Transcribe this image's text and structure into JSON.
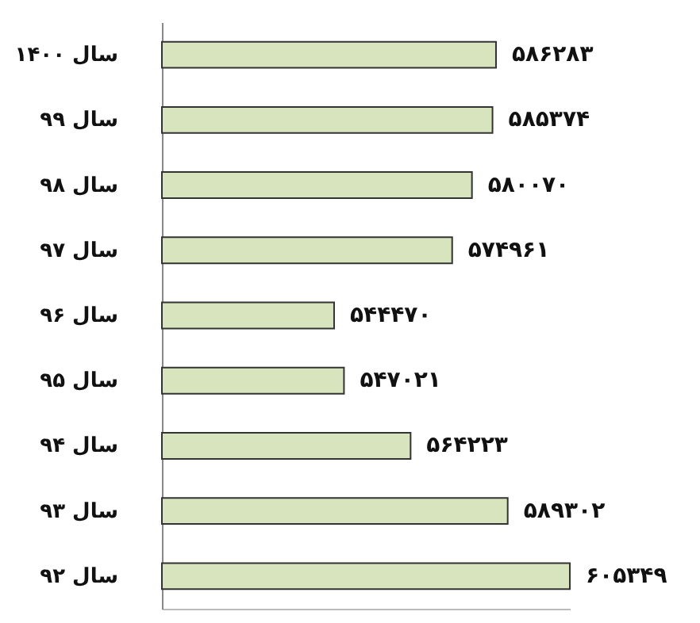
{
  "chart_data": {
    "type": "bar",
    "orientation": "horizontal",
    "categories": [
      "سال ۱۴۰۰",
      "سال ۹۹",
      "سال ۹۸",
      "سال ۹۷",
      "سال ۹۶",
      "سال ۹۵",
      "سال ۹۴",
      "سال ۹۳",
      "سال ۹۲"
    ],
    "values": [
      586283,
      585374,
      580070,
      574961,
      544470,
      547021,
      564223,
      589302,
      605349
    ],
    "value_labels": [
      "۵۸۶۲۸۳",
      "۵۸۵۳۷۴",
      "۵۸۰۰۷۰",
      "۵۷۴۹۶۱",
      "۵۴۴۴۷۰",
      "۵۴۷۰۲۱",
      "۵۶۴۲۲۳",
      "۵۸۹۳۰۲",
      "۶۰۵۳۴۹"
    ],
    "color": "#d7e4bd",
    "xlim": [
      500000,
      605349
    ],
    "tick_labels": "y"
  }
}
